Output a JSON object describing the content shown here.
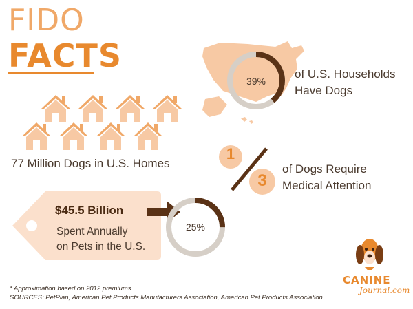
{
  "title": {
    "line1": "FIDO",
    "line2": "FACTS"
  },
  "households": {
    "percent_label": "39%",
    "percent_value": 39,
    "text_line1": "of U.S. Households",
    "text_line2": "Have Dogs"
  },
  "homes": {
    "count": 8,
    "text": "77 Million Dogs in U.S. Homes"
  },
  "medical": {
    "numerator": "1",
    "denominator": "3",
    "text_line1": "of Dogs Require",
    "text_line2": "Medical Attention"
  },
  "spending": {
    "amount": "$45.5 Billion",
    "text_line1": "Spent Annually",
    "text_line2": "on Pets in the U.S.",
    "percent_label": "25%",
    "percent_value": 25
  },
  "footnote": {
    "line1": "* Approximation based on 2012 premiums",
    "line2": "SOURCES: PetPlan, American Pet Products Manufacturers Association, American Pet Products Association"
  },
  "brand": {
    "name": "CANINE",
    "sub": "Journal.com"
  },
  "colors": {
    "orange": "#e8892e",
    "light_orange": "#f0a868",
    "peach": "#f7c9a4",
    "pale_peach": "#fbe0cc",
    "ring_gray": "#d6cfc7",
    "brown": "#5a3216",
    "text": "#4a3a2e"
  }
}
